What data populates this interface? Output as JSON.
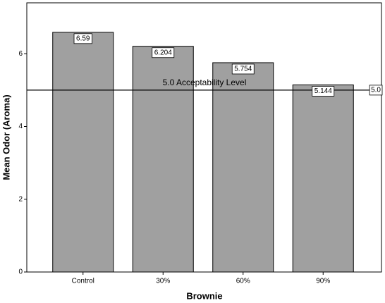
{
  "chart_data": {
    "type": "bar",
    "categories": [
      "Control",
      "30%",
      "60%",
      "90%"
    ],
    "values": [
      6.59,
      6.204,
      5.754,
      5.144
    ],
    "color": "#a0a0a0",
    "x_label": "Brownie",
    "y_label": "Mean Odor (Aroma)",
    "ylim": [
      0,
      7.4
    ],
    "yticks": [
      0,
      2,
      4,
      6
    ],
    "reference_line": {
      "value": 5,
      "label": "5.0",
      "annotation": "5.0 Acceptability Level"
    }
  }
}
